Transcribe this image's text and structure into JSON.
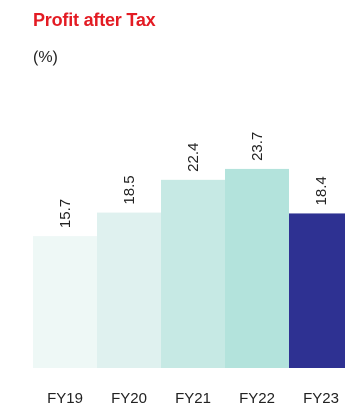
{
  "header": {
    "title": "Profit after Tax",
    "subtitle": "(%)"
  },
  "colors": {
    "title": "#e31b23"
  },
  "chart_data": {
    "type": "bar",
    "title": "Profit after Tax",
    "subtitle": "(%)",
    "categories": [
      "FY19",
      "FY20",
      "FY21",
      "FY22",
      "FY23"
    ],
    "values": [
      15.7,
      18.5,
      22.4,
      23.7,
      18.4
    ],
    "data_labels": [
      "15.7",
      "18.5",
      "22.4",
      "23.7",
      "18.4"
    ],
    "bar_colors": [
      "#eef8f6",
      "#dff1ef",
      "#c6e9e4",
      "#b3e3dc",
      "#2e3192"
    ],
    "xlabel": "",
    "ylabel": "",
    "ylim": [
      0,
      40
    ],
    "grid": false,
    "legend": "none"
  }
}
